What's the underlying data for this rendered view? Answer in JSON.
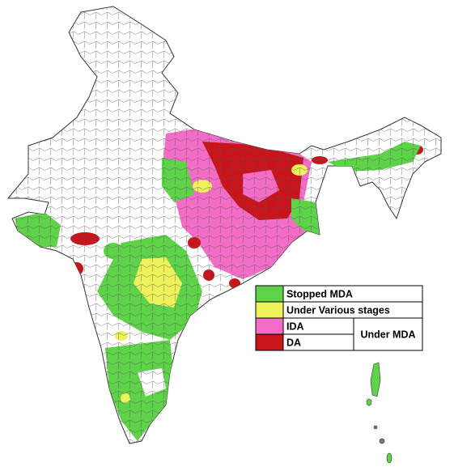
{
  "legend": {
    "items": [
      {
        "label": "Stopped MDA",
        "color": "#5ed34a"
      },
      {
        "label": "Under Various stages",
        "color": "#eef25a"
      },
      {
        "label": "IDA",
        "color": "#f36dc6"
      },
      {
        "label": "DA",
        "color": "#c9141c"
      }
    ],
    "group_label": "Under MDA"
  }
}
